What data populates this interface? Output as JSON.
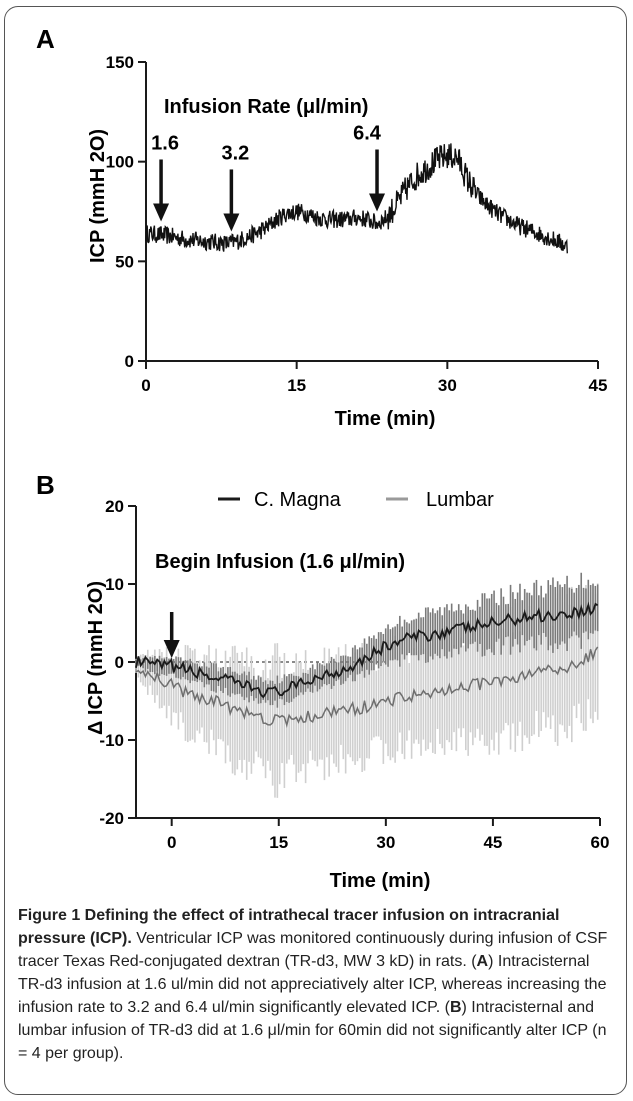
{
  "chart_data": [
    {
      "panel": "A",
      "type": "line",
      "ylabel": "ICP (mmH 2O)",
      "xlabel": "Time (min)",
      "xlim": [
        0,
        45
      ],
      "ylim": [
        0,
        150
      ],
      "xticks": [
        "0",
        "15",
        "30",
        "45"
      ],
      "yticks": [
        "0",
        "50",
        "100",
        "150"
      ],
      "annotation_title": "Infusion Rate (μl/min)",
      "arrows": [
        {
          "label": "1.6",
          "x": 1.5,
          "y": 64
        },
        {
          "label": "3.2",
          "x": 8.5,
          "y": 59
        },
        {
          "label": "6.4",
          "x": 23,
          "y": 69
        }
      ],
      "series": [
        {
          "x": [
            0,
            2,
            4,
            6,
            8,
            9,
            10,
            11,
            12,
            13,
            14,
            15,
            16,
            17,
            18,
            19,
            20,
            21,
            22,
            23,
            24,
            25,
            26,
            27,
            28,
            29,
            30,
            31,
            32,
            33,
            34,
            35,
            36,
            37,
            38,
            39,
            40,
            41,
            42
          ],
          "values": [
            64,
            63,
            61,
            60,
            59,
            60,
            62,
            64,
            67,
            71,
            74,
            75,
            74,
            72,
            71,
            71,
            71,
            72,
            71,
            69,
            72,
            79,
            87,
            93,
            97,
            101,
            103,
            102,
            91,
            83,
            78,
            74,
            71,
            68,
            66,
            64,
            62,
            60,
            57
          ]
        }
      ]
    },
    {
      "panel": "B",
      "type": "line",
      "ylabel": "Δ ICP (mmH 2O)",
      "xlabel": "Time (min)",
      "xlim": [
        -5,
        60
      ],
      "ylim": [
        -20,
        20
      ],
      "xticks": [
        "0",
        "15",
        "30",
        "45",
        "60"
      ],
      "yticks": [
        "-20",
        "-10",
        "0",
        "10",
        "20"
      ],
      "annotation_title": "Begin Infusion (1.6 μl/min)",
      "legend": [
        "C. Magna",
        "Lumbar"
      ],
      "series": [
        {
          "name": "C. Magna",
          "color": "#1a1a1a",
          "x": [
            -5,
            -3,
            -1,
            0,
            2,
            4,
            6,
            8,
            10,
            12,
            14,
            16,
            18,
            20,
            22,
            24,
            26,
            28,
            30,
            33,
            36,
            39,
            42,
            45,
            48,
            51,
            54,
            57,
            60
          ],
          "values": [
            0,
            -0.3,
            -0.6,
            -0.5,
            -1,
            -1.5,
            -2,
            -2.5,
            -3,
            -3.5,
            -4,
            -3.5,
            -3,
            -2,
            -1.5,
            -1,
            0,
            1,
            2,
            3,
            3.5,
            4,
            4.5,
            5,
            5.5,
            6,
            6,
            6.5,
            7
          ],
          "spread": [
            0.5,
            1,
            1,
            1,
            1.2,
            1.3,
            1.5,
            1.5,
            1.6,
            1.6,
            1.7,
            1.6,
            1.5,
            1.5,
            1.6,
            1.8,
            2,
            2.2,
            2.5,
            2.7,
            2.9,
            3,
            3.2,
            3.3,
            3.5,
            3.6,
            3.8,
            4,
            4
          ]
        },
        {
          "name": "Lumbar",
          "color": "#8a8a8a",
          "x": [
            -5,
            -3,
            -1,
            0,
            2,
            4,
            6,
            8,
            10,
            12,
            14,
            16,
            18,
            20,
            22,
            24,
            26,
            28,
            30,
            33,
            36,
            39,
            42,
            45,
            48,
            51,
            54,
            57,
            60
          ],
          "values": [
            -0.5,
            -1.5,
            -2.5,
            -3,
            -4,
            -4.5,
            -5,
            -6,
            -6.5,
            -7,
            -7.5,
            -7.5,
            -7,
            -7,
            -6.5,
            -6,
            -6,
            -5.5,
            -5,
            -4.5,
            -4,
            -3.5,
            -3,
            -2.5,
            -2,
            -1.5,
            -1,
            0,
            1.5
          ],
          "spread": [
            1.5,
            2.5,
            3.5,
            4,
            5,
            5.5,
            6,
            6.5,
            7,
            7.5,
            8,
            7.5,
            7,
            7,
            7,
            6.5,
            6.5,
            6.5,
            6.5,
            6.5,
            6.5,
            7,
            7,
            7.5,
            7.5,
            8,
            8,
            8,
            8
          ]
        }
      ]
    }
  ],
  "caption": {
    "title": "Figure 1 Defining the effect of intrathecal tracer infusion on intracranial pressure (ICP).",
    "body1": " Ventricular ICP was monitored continuously during infusion of CSF tracer Texas Red-conjugated dextran (TR-d3, MW 3 kD) in rats. (",
    "A": "A",
    "body2": ") Intracisternal TR-d3 infusion at 1.6 ul/min did not appreciatively alter ICP, whereas increasing the infusion rate to 3.2 and 6.4 ul/min significantly elevated ICP. (",
    "B": "B",
    "body3": ") Intracisternal and lumbar infusion of TR-d3 did at 1.6 μl/min for 60min did not significantly alter ICP (n = 4 per group)."
  }
}
